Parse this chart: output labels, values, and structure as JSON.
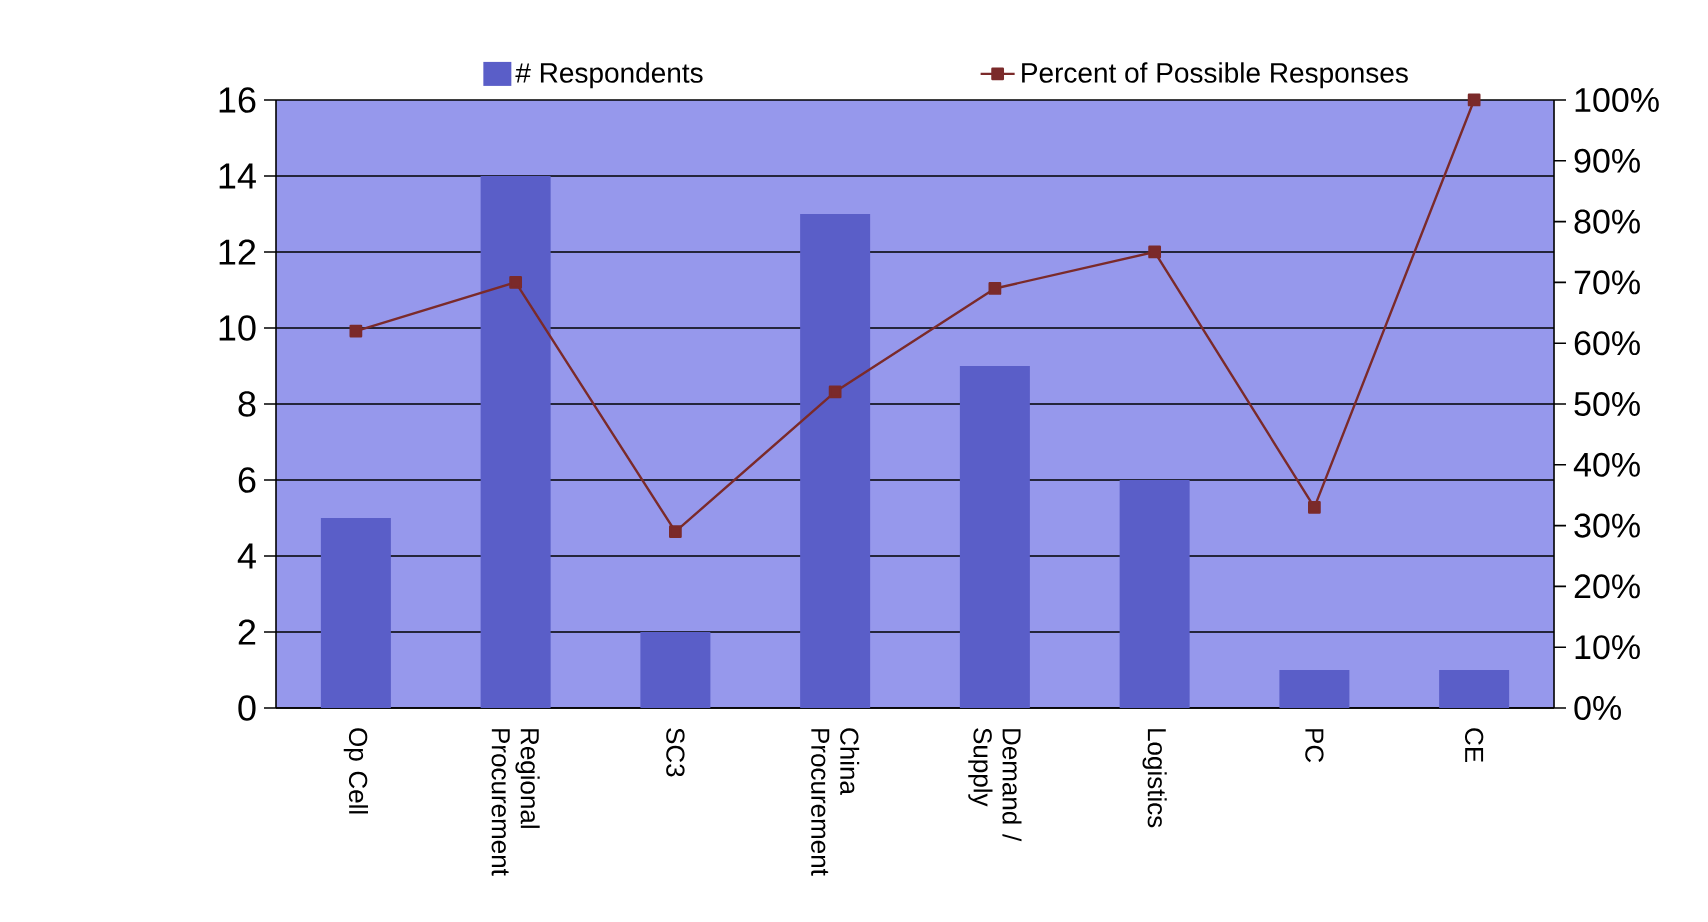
{
  "chart_data": {
    "type": "bar",
    "categories": [
      "Op Cell",
      "Regional Procurement",
      "SC3",
      "China Procurement",
      "Demand / Supply",
      "Logistics",
      "PC",
      "CE"
    ],
    "series": [
      {
        "name": "# Respondents",
        "color": "#5a5ec8",
        "values": [
          5,
          14,
          2,
          13,
          9,
          6,
          1,
          1
        ]
      },
      {
        "name": "Percent of Possible Responses",
        "type": "line",
        "axis": "y2",
        "color": "#7b2a2a",
        "marker": "square",
        "values": [
          62,
          70,
          29,
          52,
          69,
          75,
          33,
          100
        ]
      }
    ],
    "ylim": [
      0,
      16
    ],
    "yticks": [
      0,
      2,
      4,
      6,
      8,
      10,
      12,
      14,
      16
    ],
    "y2lim": [
      0,
      100
    ],
    "y2ticks": [
      {
        "value": 0,
        "label": "0%"
      },
      {
        "value": 10,
        "label": "10%"
      },
      {
        "value": 20,
        "label": "20%"
      },
      {
        "value": 30,
        "label": "30%"
      },
      {
        "value": 40,
        "label": "40%"
      },
      {
        "value": 50,
        "label": "50%"
      },
      {
        "value": 60,
        "label": "60%"
      },
      {
        "value": 70,
        "label": "70%"
      },
      {
        "value": 80,
        "label": "80%"
      },
      {
        "value": 90,
        "label": "90%"
      },
      {
        "value": 100,
        "label": "100%"
      }
    ],
    "grid": "y",
    "legend": "top"
  }
}
